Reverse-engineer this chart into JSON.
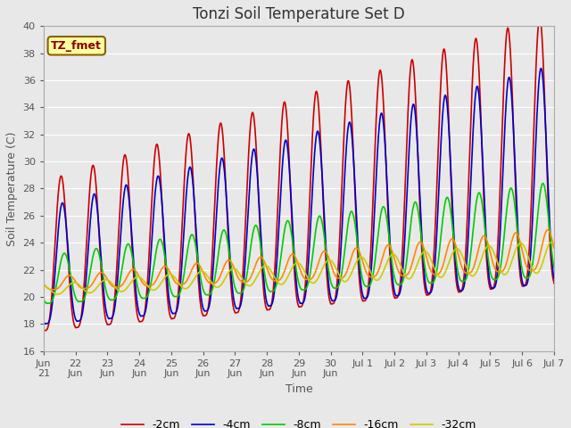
{
  "title": "Tonzi Soil Temperature Set D",
  "xlabel": "Time",
  "ylabel": "Soil Temperature (C)",
  "ylim": [
    16,
    40
  ],
  "annotation_text": "TZ_fmet",
  "annotation_color": "#8B0000",
  "annotation_bg": "#FFFFA0",
  "annotation_border": "#8B6000",
  "series": [
    {
      "label": "-2cm",
      "color": "#CC0000"
    },
    {
      "label": "-4cm",
      "color": "#0000CC"
    },
    {
      "label": "-8cm",
      "color": "#00CC00"
    },
    {
      "label": "-16cm",
      "color": "#FF8800"
    },
    {
      "label": "-32cm",
      "color": "#CCCC00"
    }
  ],
  "tick_labels": [
    "Jun\n21",
    "22Jun",
    "23Jun",
    "24Jun",
    "25Jun",
    "26Jun",
    "27Jun",
    "28Jun",
    "29Jun",
    "30Jun",
    "Jul 1",
    "Jul 2",
    "Jul 3",
    "Jul 4",
    "Jul 5",
    "Jul 6",
    "Jul 7"
  ],
  "background_color": "#E8E8E8",
  "plot_bg": "#E8E8E8",
  "grid_color": "white",
  "title_fontsize": 12,
  "axis_label_fontsize": 9,
  "tick_fontsize": 8,
  "legend_fontsize": 9,
  "linewidth": 1.2
}
